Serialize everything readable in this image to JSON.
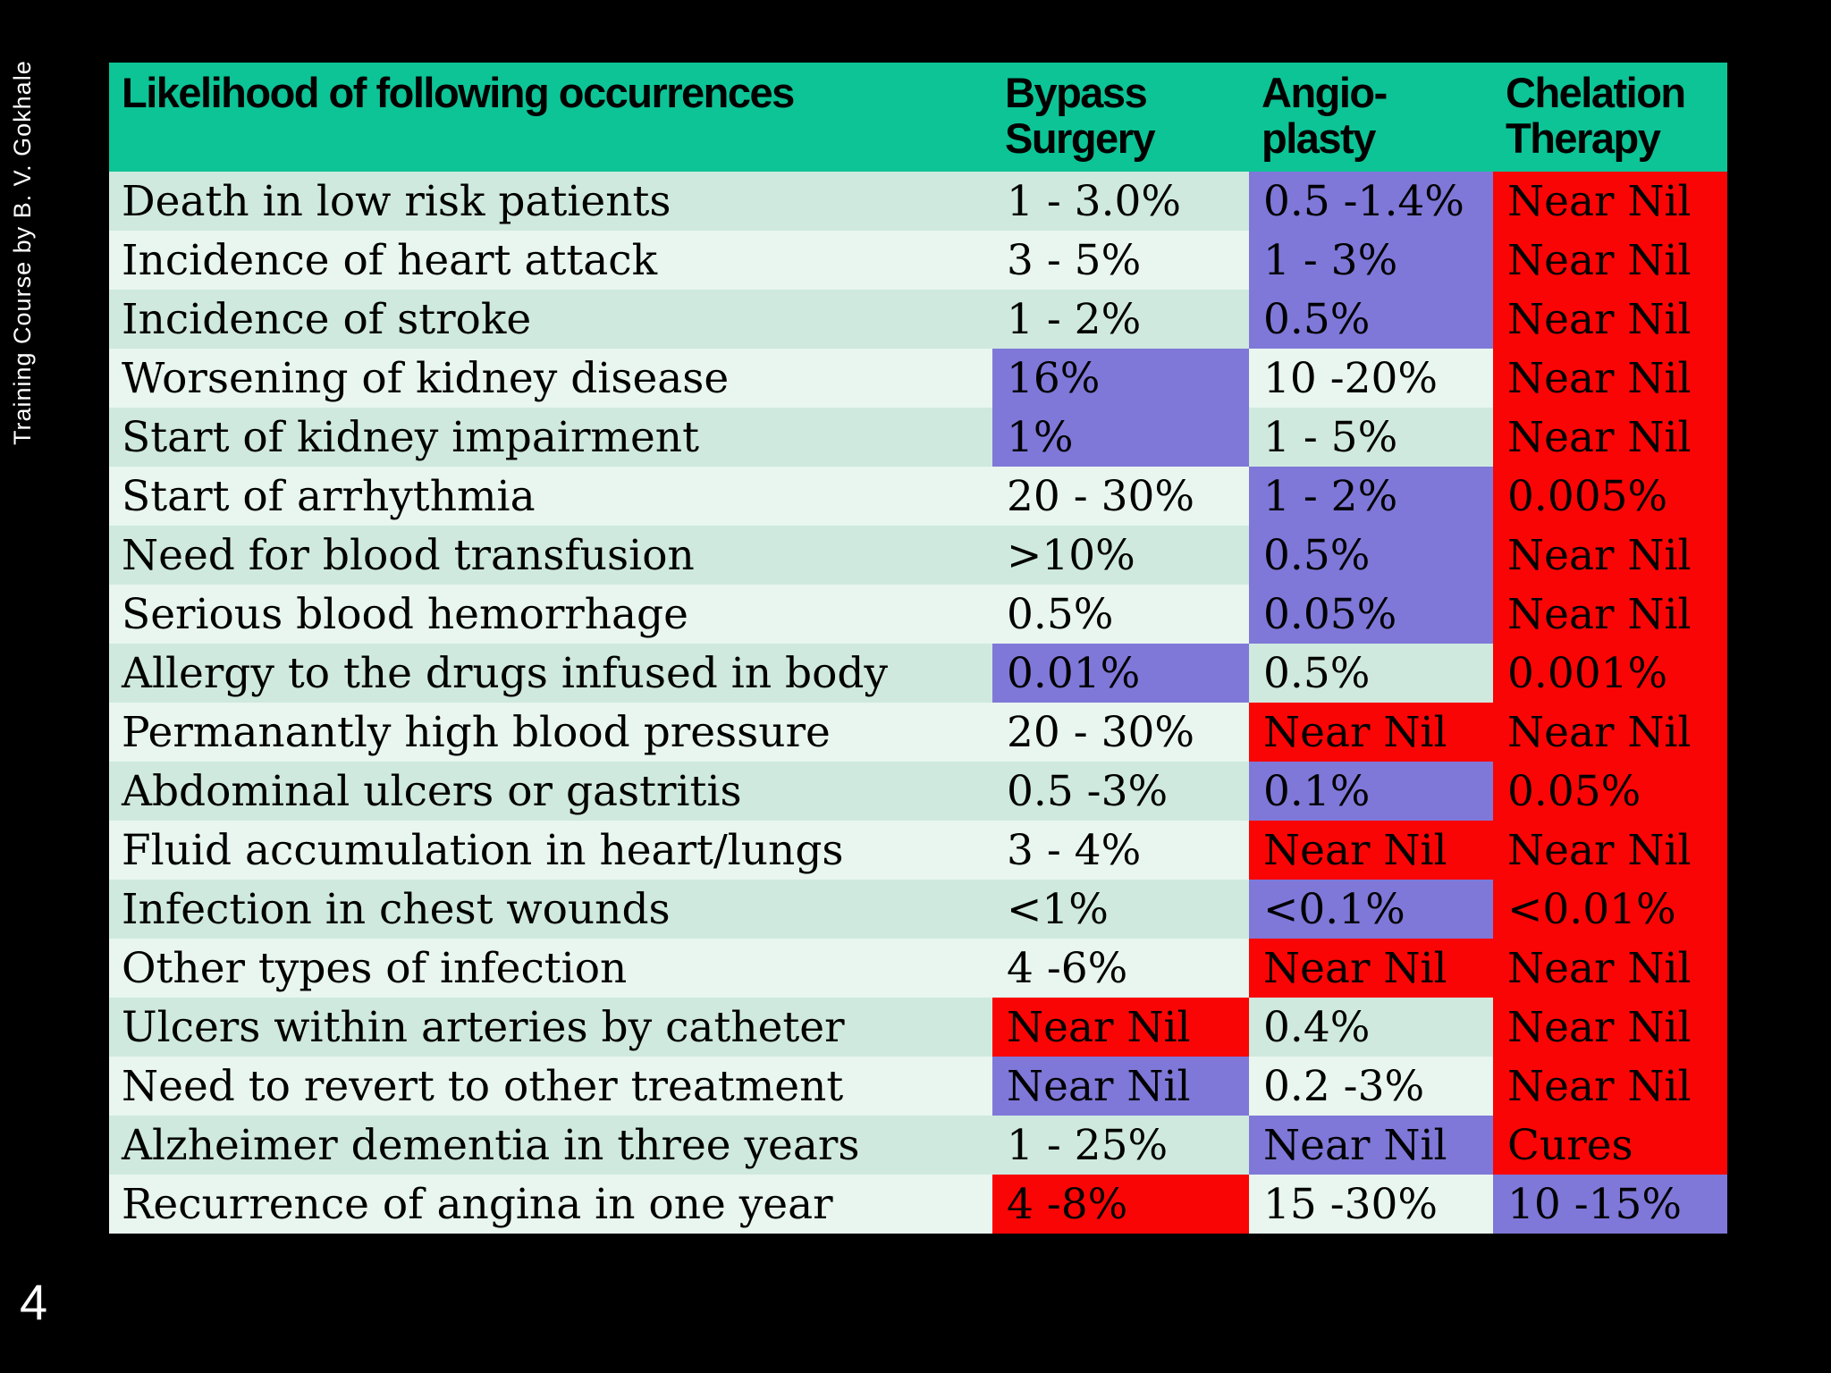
{
  "slide": {
    "sidebar_text": "Training Course by B. V. Gokhale",
    "page_number": "4"
  },
  "colors": {
    "slide_background": "#000000",
    "header_green": "#0DC496",
    "highlight_purple": "#7F78D8",
    "highlight_red": "#F90505",
    "row_stripe_dark": "#CFE9DE",
    "row_stripe_light": "#E8F6EF",
    "table_text": "#000000",
    "sidebar_text_color": "#FFFFFF"
  },
  "table": {
    "header": {
      "label": "Likelihood of following occurrences",
      "bypass": "Bypass\nSurgery",
      "angio": "Angio-\nplasty",
      "chelation": "Chelation\nTherapy"
    },
    "rows": [
      {
        "label": "Death in low risk patients",
        "bypass": {
          "text": "1 - 3.0%",
          "bg": "row"
        },
        "angio": {
          "text": "0.5 -1.4%",
          "bg": "purple"
        },
        "chelation": {
          "text": "Near Nil",
          "bg": "red"
        }
      },
      {
        "label": "Incidence of heart attack",
        "bypass": {
          "text": "3 - 5%",
          "bg": "row"
        },
        "angio": {
          "text": "1 - 3%",
          "bg": "purple"
        },
        "chelation": {
          "text": "Near Nil",
          "bg": "red"
        }
      },
      {
        "label": "Incidence of stroke",
        "bypass": {
          "text": "1 - 2%",
          "bg": "row"
        },
        "angio": {
          "text": "0.5%",
          "bg": "purple"
        },
        "chelation": {
          "text": "Near Nil",
          "bg": "red"
        }
      },
      {
        "label": "Worsening of kidney disease",
        "bypass": {
          "text": "16%",
          "bg": "purple"
        },
        "angio": {
          "text": "10 -20%",
          "bg": "row"
        },
        "chelation": {
          "text": "Near Nil",
          "bg": "red"
        }
      },
      {
        "label": "Start of kidney impairment",
        "bypass": {
          "text": "1%",
          "bg": "purple"
        },
        "angio": {
          "text": "1 - 5%",
          "bg": "row"
        },
        "chelation": {
          "text": "Near Nil",
          "bg": "red"
        }
      },
      {
        "label": "Start of arrhythmia",
        "bypass": {
          "text": "20 - 30%",
          "bg": "row"
        },
        "angio": {
          "text": "1 - 2%",
          "bg": "purple"
        },
        "chelation": {
          "text": "0.005%",
          "bg": "red"
        }
      },
      {
        "label": "Need for blood transfusion",
        "bypass": {
          "text": ">10%",
          "bg": "row"
        },
        "angio": {
          "text": "0.5%",
          "bg": "purple"
        },
        "chelation": {
          "text": "Near Nil",
          "bg": "red"
        }
      },
      {
        "label": "Serious blood hemorrhage",
        "bypass": {
          "text": "0.5%",
          "bg": "row"
        },
        "angio": {
          "text": "0.05%",
          "bg": "purple"
        },
        "chelation": {
          "text": "Near Nil",
          "bg": "red"
        }
      },
      {
        "label": "Allergy to the drugs infused in body",
        "bypass": {
          "text": "0.01%",
          "bg": "purple"
        },
        "angio": {
          "text": "0.5%",
          "bg": "row"
        },
        "chelation": {
          "text": "0.001%",
          "bg": "red"
        }
      },
      {
        "label": "Permanantly high blood pressure",
        "bypass": {
          "text": "20 - 30%",
          "bg": "row"
        },
        "angio": {
          "text": "Near Nil",
          "bg": "red"
        },
        "chelation": {
          "text": "Near Nil",
          "bg": "red"
        }
      },
      {
        "label": "Abdominal ulcers or gastritis",
        "bypass": {
          "text": "0.5 -3%",
          "bg": "row"
        },
        "angio": {
          "text": "0.1%",
          "bg": "purple"
        },
        "chelation": {
          "text": "0.05%",
          "bg": "red"
        }
      },
      {
        "label": "Fluid accumulation in heart/lungs",
        "bypass": {
          "text": "3 - 4%",
          "bg": "row"
        },
        "angio": {
          "text": "Near Nil",
          "bg": "red"
        },
        "chelation": {
          "text": "Near Nil",
          "bg": "red"
        }
      },
      {
        "label": "Infection in chest wounds",
        "bypass": {
          "text": "<1%",
          "bg": "row"
        },
        "angio": {
          "text": "<0.1%",
          "bg": "purple"
        },
        "chelation": {
          "text": "<0.01%",
          "bg": "red"
        }
      },
      {
        "label": "Other  types of infection",
        "bypass": {
          "text": "4 -6%",
          "bg": "row"
        },
        "angio": {
          "text": "Near Nil",
          "bg": "red"
        },
        "chelation": {
          "text": "Near Nil",
          "bg": "red"
        }
      },
      {
        "label": "Ulcers within arteries by catheter",
        "bypass": {
          "text": "Near Nil",
          "bg": "red"
        },
        "angio": {
          "text": "0.4%",
          "bg": "row"
        },
        "chelation": {
          "text": "Near Nil",
          "bg": "red"
        }
      },
      {
        "label": "Need to revert to other treatment",
        "bypass": {
          "text": "Near Nil",
          "bg": "purple"
        },
        "angio": {
          "text": "0.2 -3%",
          "bg": "row"
        },
        "chelation": {
          "text": "Near Nil",
          "bg": "red"
        }
      },
      {
        "label": "Alzheimer dementia in three years",
        "bypass": {
          "text": "1 - 25%",
          "bg": "row"
        },
        "angio": {
          "text": "Near Nil",
          "bg": "purple"
        },
        "chelation": {
          "text": "Cures",
          "bg": "red"
        }
      },
      {
        "label": "Recurrence of angina in one year",
        "bypass": {
          "text": "4 -8%",
          "bg": "red"
        },
        "angio": {
          "text": "15 -30%",
          "bg": "row"
        },
        "chelation": {
          "text": "10 -15%",
          "bg": "purple"
        }
      }
    ]
  }
}
